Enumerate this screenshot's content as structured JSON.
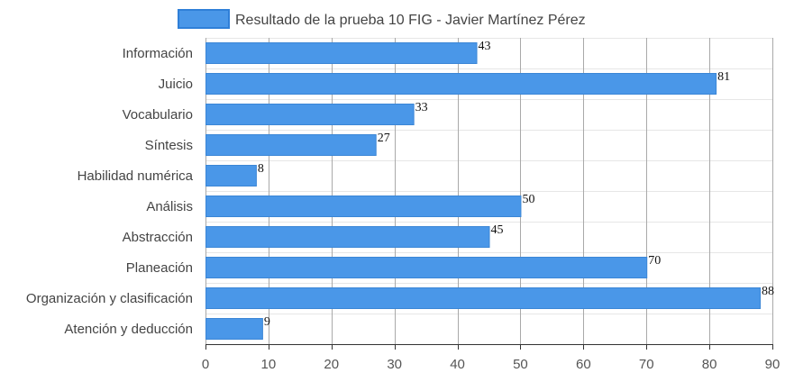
{
  "chart_data": {
    "type": "bar",
    "orientation": "horizontal",
    "categories": [
      "Información",
      "Juicio",
      "Vocabulario",
      "Síntesis",
      "Habilidad numérica",
      "Análisis",
      "Abstracción",
      "Planeación",
      "Organización y clasificación",
      "Atención y deducción"
    ],
    "series": [
      {
        "name": "Resultado de la prueba 10 FIG - Javier Martínez Pérez",
        "values": [
          43,
          81,
          33,
          27,
          8,
          50,
          45,
          70,
          88,
          9
        ]
      }
    ],
    "xlim": [
      0,
      90
    ],
    "xticks": [
      "0",
      "10",
      "20",
      "30",
      "40",
      "50",
      "60",
      "70",
      "80",
      "90"
    ],
    "grid": true,
    "legend_position": "top",
    "data_labels": true,
    "colors": {
      "bar_fill": "#4a97e8",
      "bar_stroke": "#3b86d6",
      "legend_fill": "#4a97e8",
      "legend_stroke": "#2f7fd8",
      "grid_vertical": "#a9a9a9",
      "grid_horizontal": "#e6e6e6",
      "axis": "#333333"
    }
  }
}
